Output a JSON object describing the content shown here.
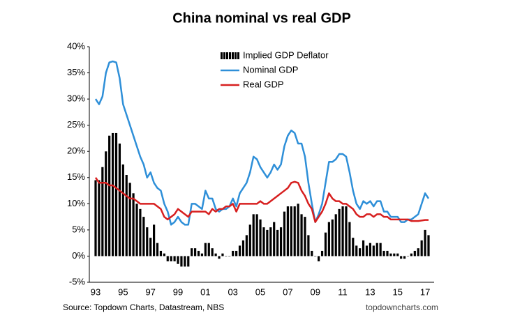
{
  "chart_data": {
    "type": "combo",
    "title": "China nominal vs real GDP",
    "source": "Source: Topdown Charts, Datastream, NBS",
    "watermark": "topdowncharts.com",
    "categories": [
      "93",
      null,
      null,
      null,
      null,
      null,
      null,
      null,
      "95",
      null,
      null,
      null,
      null,
      null,
      null,
      null,
      "97",
      null,
      null,
      null,
      null,
      null,
      null,
      null,
      "99",
      null,
      null,
      null,
      null,
      null,
      null,
      null,
      "01",
      null,
      null,
      null,
      null,
      null,
      null,
      null,
      "03",
      null,
      null,
      null,
      null,
      null,
      null,
      null,
      "05",
      null,
      null,
      null,
      null,
      null,
      null,
      null,
      "07",
      null,
      null,
      null,
      null,
      null,
      null,
      null,
      "09",
      null,
      null,
      null,
      null,
      null,
      null,
      null,
      "11",
      null,
      null,
      null,
      null,
      null,
      null,
      null,
      "13",
      null,
      null,
      null,
      null,
      null,
      null,
      null,
      "15",
      null,
      null,
      null,
      null,
      null,
      null,
      null,
      "17",
      null
    ],
    "ylim": [
      -5,
      40
    ],
    "yticks": [
      {
        "value": -5,
        "label": "-5%"
      },
      {
        "value": 0,
        "label": "0%"
      },
      {
        "value": 5,
        "label": "5%"
      },
      {
        "value": 10,
        "label": "10%"
      },
      {
        "value": 15,
        "label": "15%"
      },
      {
        "value": 20,
        "label": "20%"
      },
      {
        "value": 25,
        "label": "25%"
      },
      {
        "value": 30,
        "label": "30%"
      },
      {
        "value": 35,
        "label": "35%"
      },
      {
        "value": 40,
        "label": "40%"
      }
    ],
    "legend": "top",
    "series": [
      {
        "name": "Implied GDP Deflator",
        "type": "bar",
        "color": "#000000",
        "values": [
          14.5,
          14.5,
          17,
          20,
          23,
          23.5,
          23.5,
          21.5,
          17.5,
          15.5,
          14,
          12,
          10,
          9,
          7.5,
          5.5,
          3.5,
          6,
          2.5,
          1,
          0.5,
          -1,
          -1,
          -1,
          -1.5,
          -2,
          -2,
          -2,
          1.5,
          1.5,
          1,
          0.5,
          2.5,
          2.5,
          1.5,
          0.5,
          -0.5,
          0.5,
          0,
          0,
          1,
          1,
          2,
          3,
          4,
          6,
          8,
          8,
          7,
          5.5,
          5,
          5.5,
          6.5,
          5,
          5.5,
          8.5,
          9.5,
          9.5,
          9.5,
          10,
          8,
          7.5,
          4,
          1,
          0,
          -1,
          1,
          4.5,
          6.5,
          7,
          8,
          9,
          9.5,
          9.5,
          6.5,
          3.5,
          2,
          1.5,
          3,
          2,
          2.5,
          2,
          2.5,
          2.5,
          1,
          1,
          0.5,
          0.5,
          0.5,
          -0.5,
          -0.5,
          0,
          0.5,
          1,
          1.5,
          3,
          5,
          4
        ]
      },
      {
        "name": "Nominal GDP",
        "type": "line",
        "color": "#2e8fd8",
        "values": [
          30,
          29,
          30.5,
          35,
          37,
          37.2,
          37,
          34,
          29,
          27,
          25,
          23,
          21,
          19,
          17.5,
          15,
          16,
          14,
          13,
          12.5,
          10,
          8.5,
          6,
          6.5,
          7.5,
          6.5,
          6,
          6,
          10,
          10,
          9.5,
          9,
          12.5,
          11,
          11,
          9,
          8.5,
          9,
          9,
          9.5,
          11,
          9.5,
          12,
          13,
          14,
          16,
          19,
          18.5,
          17,
          16,
          15,
          16,
          17.5,
          16.5,
          17.5,
          21,
          23,
          24,
          23.5,
          21.5,
          21.5,
          19,
          14,
          10,
          6.5,
          8,
          10,
          14,
          18,
          18,
          18.5,
          19.5,
          19.5,
          19,
          16,
          12.5,
          10,
          9,
          10.5,
          10,
          10.5,
          9.5,
          10.5,
          10.5,
          8.5,
          8.5,
          7.5,
          7.5,
          7.5,
          6.5,
          6.5,
          7,
          7,
          7.5,
          8,
          10,
          12,
          11
        ]
      },
      {
        "name": "Real GDP",
        "type": "line",
        "color": "#d71f1f",
        "values": [
          15,
          14,
          14,
          14,
          13.5,
          13.5,
          13,
          12.5,
          12,
          11.5,
          11,
          11,
          10.5,
          10,
          10,
          10,
          10,
          10,
          9.5,
          9,
          7.5,
          7,
          7.5,
          8,
          9,
          8.5,
          8,
          7.5,
          8.5,
          8.5,
          8.5,
          8.5,
          8.5,
          8,
          9,
          8.5,
          9,
          9,
          9.5,
          9.5,
          10,
          8.5,
          10,
          10,
          10,
          10,
          10,
          10,
          10.5,
          10,
          10,
          10.5,
          11,
          11.5,
          12,
          12.5,
          13,
          14,
          14.2,
          14,
          12.5,
          11.5,
          10,
          9,
          6.5,
          7.5,
          8.5,
          10,
          12,
          11,
          10.5,
          10.5,
          10,
          10,
          9.5,
          9,
          8,
          7.5,
          7.5,
          8,
          8,
          7.5,
          8,
          8,
          7.5,
          7.5,
          7,
          7,
          7,
          7,
          7,
          7,
          6.7,
          6.7,
          6.7,
          6.8,
          6.9,
          6.9
        ]
      }
    ]
  }
}
